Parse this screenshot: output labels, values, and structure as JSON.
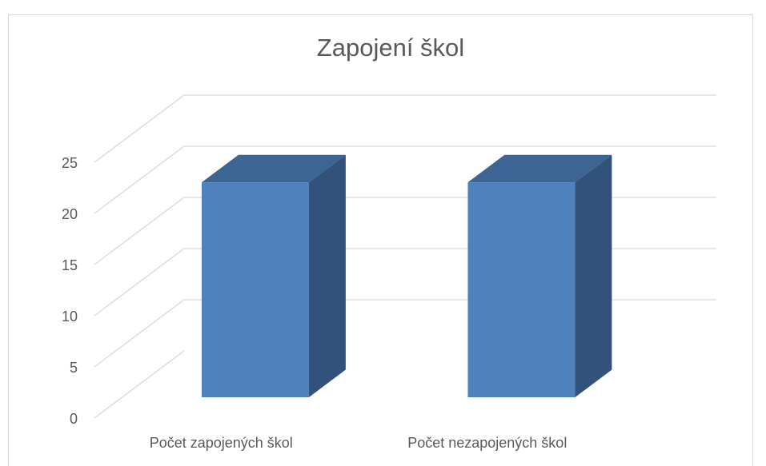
{
  "chart_data": {
    "type": "bar3d",
    "title": "Zapojení škol",
    "categories": [
      "Počet zapojených škol",
      "Počet nezapojených škol"
    ],
    "values": [
      21,
      21
    ],
    "color": "#4f81bd",
    "ylim": [
      0,
      25
    ],
    "yticks": [
      0,
      5,
      10,
      15,
      20,
      25
    ],
    "grid": true
  }
}
